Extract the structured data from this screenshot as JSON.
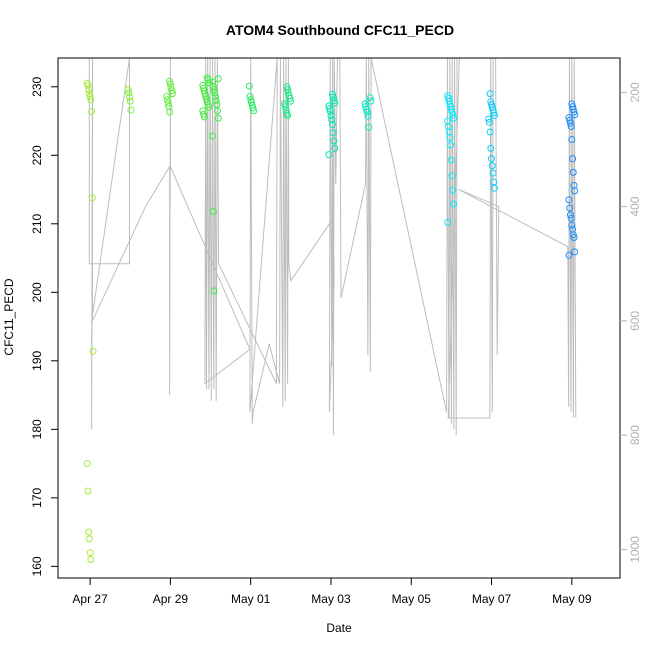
{
  "chart_data": {
    "type": "scatter",
    "title": "ATOM4 Southbound CFC11_PECD",
    "xlabel": "Date",
    "ylabel": "CFC11_PECD",
    "x_ticks": [
      {
        "label": "Apr 27",
        "day": 0
      },
      {
        "label": "Apr 29",
        "day": 2
      },
      {
        "label": "May 01",
        "day": 4
      },
      {
        "label": "May 03",
        "day": 6
      },
      {
        "label": "May 05",
        "day": 8
      },
      {
        "label": "May 07",
        "day": 10
      },
      {
        "label": "May 09",
        "day": 12
      }
    ],
    "xlim": [
      -0.8,
      13.2
    ],
    "ylim": [
      158.3,
      234.2
    ],
    "y_ticks": [
      160,
      170,
      180,
      190,
      200,
      210,
      220,
      230
    ],
    "y2_axis": {
      "ticks": [
        200,
        400,
        600,
        800,
        1000
      ],
      "range": [
        140,
        1050
      ],
      "reversed": true,
      "line_color": "#bdbdbd"
    },
    "point_color_stops": [
      "#a6ec3a",
      "#3cf03c",
      "#00e8b0",
      "#00eefe",
      "#1e90ff"
    ],
    "point_groups": [
      {
        "day": 0.0,
        "y": [
          230.5,
          230.2,
          229.6,
          229.0,
          228.6,
          228.1,
          226.4,
          213.8,
          191.4,
          175.0,
          171.0,
          165.0,
          164.0,
          162.0,
          161.0
        ]
      },
      {
        "day": 0.98,
        "y": [
          229.6,
          229.1,
          228.5,
          227.9,
          226.6
        ]
      },
      {
        "day": 1.98,
        "y": [
          230.8,
          230.4,
          229.9,
          229.4,
          229.0,
          228.6,
          228.1,
          227.6,
          227.1,
          226.3
        ]
      },
      {
        "day": 2.88,
        "y": [
          231.3,
          231.0,
          230.6,
          230.2,
          229.8,
          229.4,
          229.0,
          228.6,
          228.2,
          227.8,
          227.4,
          227.0,
          226.5,
          226.0,
          225.6
        ]
      },
      {
        "day": 3.12,
        "y": [
          231.2,
          230.7,
          230.1,
          229.6,
          229.1,
          228.6,
          228.0,
          227.4,
          226.5,
          225.4,
          222.8,
          211.8,
          200.2
        ]
      },
      {
        "day": 4.02,
        "y": [
          230.1,
          228.6,
          228.1,
          227.7,
          227.3,
          226.9,
          226.5
        ]
      },
      {
        "day": 4.92,
        "y": [
          230.0,
          229.6,
          229.1,
          228.7,
          228.3,
          227.9,
          227.5,
          227.1,
          226.6,
          226.1,
          225.8
        ]
      },
      {
        "day": 6.02,
        "y": [
          228.9,
          228.5,
          228.0,
          227.6,
          227.2,
          226.8,
          226.4,
          225.8,
          225.2,
          224.5,
          223.3,
          222.1,
          221.0,
          220.1
        ]
      },
      {
        "day": 6.92,
        "y": [
          228.4,
          227.9,
          227.5,
          227.1,
          226.7,
          226.3,
          225.7,
          224.1
        ]
      },
      {
        "day": 8.98,
        "y": [
          228.7,
          228.3,
          227.9,
          227.5,
          227.1,
          226.7,
          226.3,
          225.9,
          225.4,
          225.0,
          224.2,
          223.4,
          222.6,
          221.5,
          219.3,
          217.0,
          214.9,
          212.9,
          210.2
        ]
      },
      {
        "day": 10.0,
        "y": [
          229.0,
          227.8,
          227.4,
          227.0,
          226.6,
          226.2,
          225.8,
          225.3,
          224.8,
          223.4,
          221.0,
          219.5,
          218.5,
          217.4,
          216.1,
          215.2
        ]
      },
      {
        "day": 12.0,
        "y": [
          227.5,
          227.1,
          226.7,
          226.3,
          225.9,
          225.5,
          225.1,
          224.7,
          224.2,
          222.3,
          219.5,
          217.5,
          215.6,
          214.8,
          213.5,
          212.3,
          211.3,
          210.8,
          209.8,
          209.2,
          208.4,
          208.0,
          205.9,
          205.4
        ]
      }
    ],
    "altitude_trace": [
      [
        -0.02,
        140
      ],
      [
        -0.02,
        500
      ],
      [
        0.98,
        500
      ],
      [
        0.98,
        140
      ],
      [
        0.04,
        600
      ],
      [
        0.04,
        790
      ],
      [
        0.06,
        140
      ],
      [
        0.06,
        600
      ],
      [
        1.38,
        400
      ],
      [
        1.98,
        330
      ],
      [
        1.98,
        730
      ],
      [
        2.0,
        140
      ],
      [
        2.0,
        330
      ],
      [
        3.98,
        650
      ],
      [
        2.86,
        710
      ],
      [
        2.88,
        140
      ],
      [
        2.9,
        720
      ],
      [
        2.93,
        140
      ],
      [
        2.96,
        720
      ],
      [
        2.99,
        140
      ],
      [
        3.02,
        740
      ],
      [
        3.05,
        140
      ],
      [
        3.08,
        720
      ],
      [
        3.11,
        140
      ],
      [
        3.14,
        740
      ],
      [
        3.17,
        140
      ],
      [
        3.2,
        500
      ],
      [
        4.64,
        710
      ],
      [
        4.66,
        140
      ],
      [
        3.98,
        760
      ],
      [
        4.0,
        140
      ],
      [
        4.04,
        780
      ],
      [
        4.06,
        760
      ],
      [
        4.46,
        640
      ],
      [
        4.72,
        710
      ],
      [
        4.74,
        140
      ],
      [
        4.8,
        750
      ],
      [
        4.82,
        140
      ],
      [
        4.86,
        740
      ],
      [
        4.88,
        140
      ],
      [
        4.92,
        710
      ],
      [
        4.94,
        140
      ],
      [
        4.95,
        500
      ],
      [
        5.0,
        530
      ],
      [
        6.06,
        420
      ],
      [
        6.08,
        530
      ],
      [
        5.96,
        760
      ],
      [
        5.98,
        140
      ],
      [
        6.02,
        680
      ],
      [
        6.04,
        140
      ],
      [
        6.06,
        800
      ],
      [
        6.08,
        140
      ],
      [
        6.12,
        360
      ],
      [
        6.16,
        140
      ],
      [
        6.22,
        140
      ],
      [
        6.25,
        560
      ],
      [
        6.86,
        360
      ],
      [
        6.88,
        140
      ],
      [
        6.92,
        660
      ],
      [
        6.94,
        140
      ],
      [
        6.98,
        690
      ],
      [
        7.0,
        140
      ],
      [
        8.88,
        760
      ],
      [
        8.9,
        140
      ],
      [
        8.94,
        770
      ],
      [
        8.96,
        140
      ],
      [
        9.0,
        780
      ],
      [
        9.02,
        140
      ],
      [
        9.06,
        790
      ],
      [
        9.08,
        140
      ],
      [
        9.12,
        800
      ],
      [
        9.14,
        140
      ],
      [
        9.2,
        140
      ],
      [
        8.92,
        770
      ],
      [
        9.96,
        770
      ],
      [
        9.98,
        140
      ],
      [
        10.02,
        760
      ],
      [
        10.04,
        140
      ],
      [
        10.1,
        140
      ],
      [
        10.14,
        660
      ],
      [
        10.18,
        400
      ],
      [
        9.18,
        370
      ],
      [
        11.9,
        470
      ],
      [
        11.92,
        750
      ],
      [
        11.94,
        140
      ],
      [
        11.98,
        760
      ],
      [
        12.0,
        140
      ],
      [
        12.04,
        770
      ],
      [
        12.06,
        140
      ],
      [
        12.1,
        770
      ]
    ]
  }
}
